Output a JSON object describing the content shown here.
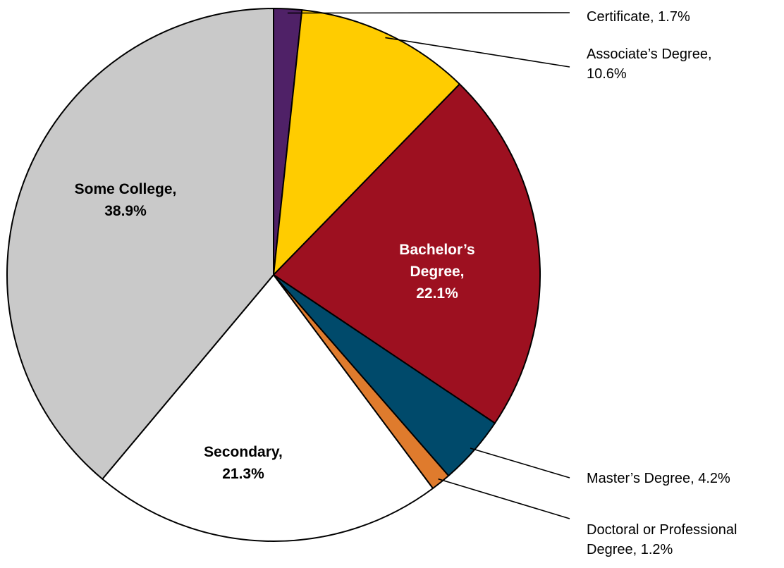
{
  "chart_data": {
    "type": "pie",
    "title": "",
    "start_angle_deg": 0,
    "direction": "clockwise",
    "slices": [
      {
        "name": "Certificate",
        "value": 1.7,
        "color": "#4f2167",
        "label_placement": "outside",
        "label_lines": [
          "Certificate, 1.7%"
        ],
        "label_color": "#000000"
      },
      {
        "name": "Associate's Degree",
        "value": 10.6,
        "color": "#ffcc00",
        "label_placement": "outside",
        "label_lines": [
          "Associate’s Degree,",
          "10.6%"
        ],
        "label_color": "#000000"
      },
      {
        "name": "Bachelor's Degree",
        "value": 22.1,
        "color": "#9d1020",
        "label_placement": "inside",
        "label_lines": [
          "Bachelor’s",
          "Degree,",
          "22.1%"
        ],
        "label_color": "#ffffff"
      },
      {
        "name": "Master's Degree",
        "value": 4.2,
        "color": "#004a6b",
        "label_placement": "outside",
        "label_lines": [
          "Master’s Degree, 4.2%"
        ],
        "label_color": "#000000"
      },
      {
        "name": "Doctoral or Professional Degree",
        "value": 1.2,
        "color": "#df7b2d",
        "label_placement": "outside",
        "label_lines": [
          "Doctoral or Professional",
          "Degree, 1.2%"
        ],
        "label_color": "#000000"
      },
      {
        "name": "Secondary",
        "value": 21.3,
        "color": "#ffffff",
        "label_placement": "inside",
        "label_lines": [
          "Secondary,",
          "21.3%"
        ],
        "label_color": "#000000"
      },
      {
        "name": "Some College",
        "value": 38.9,
        "color": "#c9c9c9",
        "label_placement": "inside",
        "label_lines": [
          "Some College,",
          "38.9%"
        ],
        "label_color": "#000000"
      }
    ]
  }
}
